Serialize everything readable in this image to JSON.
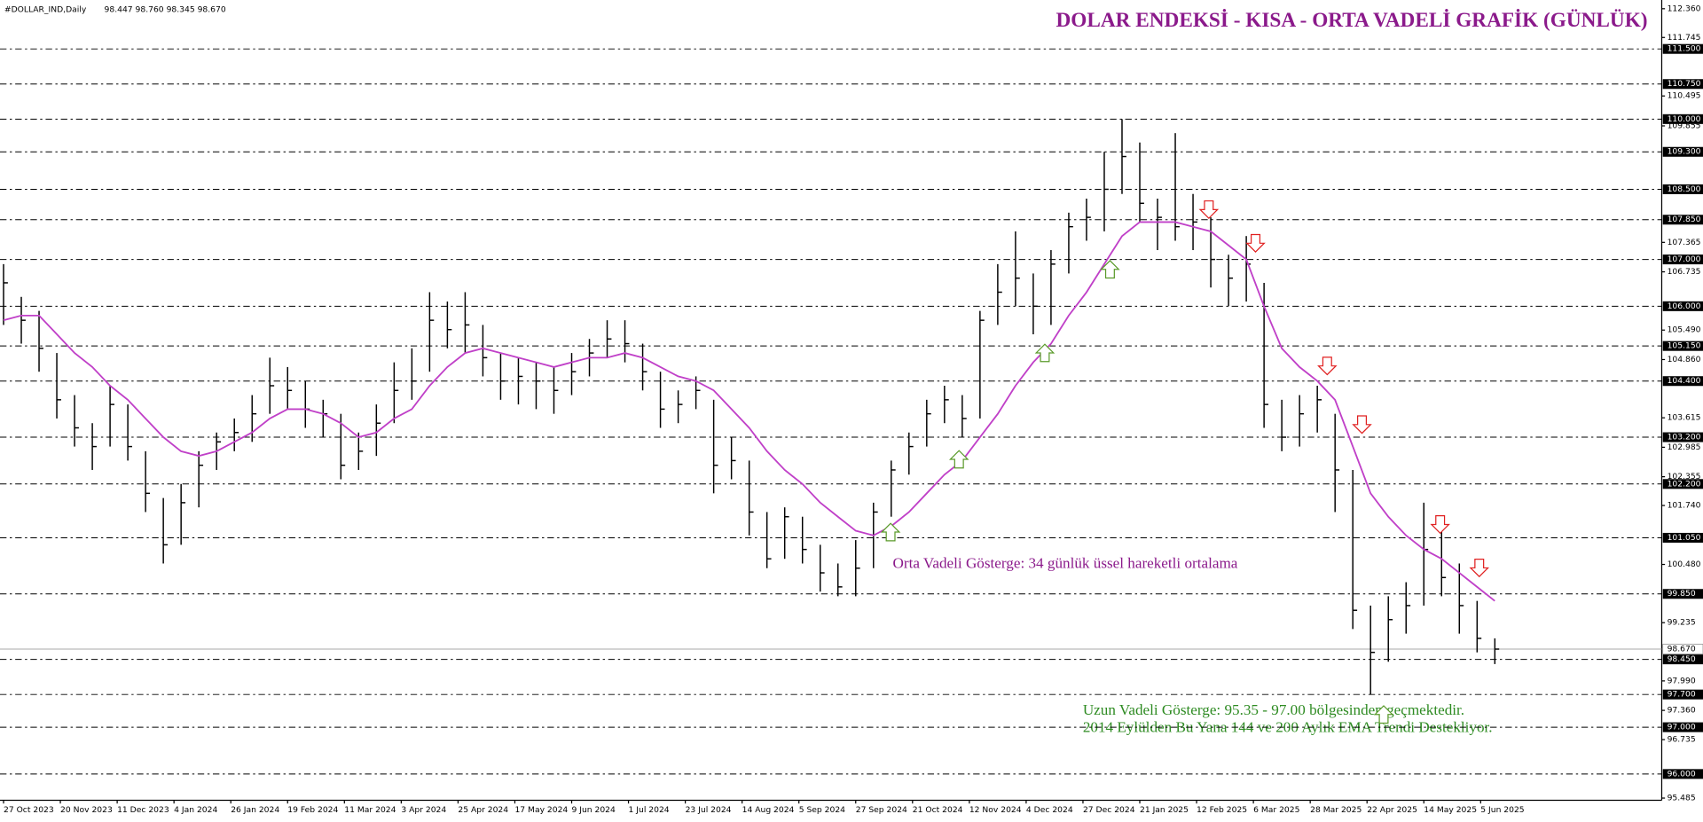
{
  "chart_data": {
    "type": "ohlc",
    "title": "DOLAR ENDEKSİ - KISA - ORTA VADELİ GRAFİK (GÜNLÜK)",
    "symbol": "#DOLLAR_IND,Daily",
    "ohlc_header": "98.447 98.760 98.345 98.670",
    "annotations": [
      "Orta Vadeli Gösterge: 34 günlük üssel hareketli ortalama",
      "Uzun Vadeli Gösterge: 95.35 - 97.00 bölgesinden geçmektedir.",
      "2014 Eylülden Bu Yana 144 ve 200 Aylık EMA Trendi Destekliyor."
    ],
    "x": [
      0,
      5,
      10,
      15,
      20,
      25,
      30,
      35,
      40,
      45,
      50,
      55,
      60,
      65,
      70,
      75,
      80,
      85,
      90,
      95,
      100,
      105,
      110,
      115,
      120,
      125,
      130,
      135,
      140,
      145,
      150,
      155,
      160,
      165,
      170,
      175,
      180,
      185,
      190,
      195,
      200,
      205,
      210,
      215,
      220,
      225,
      230,
      235,
      240,
      245,
      250,
      255,
      260,
      265,
      270,
      275,
      280,
      285,
      290,
      295,
      300,
      305,
      310,
      315,
      320,
      325,
      330,
      335,
      340,
      345,
      350,
      355,
      360,
      365,
      370,
      375,
      380,
      385,
      390,
      395,
      400,
      405,
      410,
      415,
      420
    ],
    "high": [
      106.9,
      106.2,
      105.9,
      105.0,
      104.1,
      103.5,
      104.3,
      103.9,
      102.9,
      101.9,
      102.2,
      102.9,
      103.3,
      103.6,
      104.1,
      104.9,
      104.7,
      104.4,
      104.0,
      103.7,
      103.3,
      103.9,
      104.8,
      105.1,
      106.3,
      106.1,
      106.3,
      105.6,
      105.0,
      104.9,
      104.8,
      104.7,
      105.0,
      105.3,
      105.7,
      105.7,
      105.2,
      104.6,
      104.2,
      104.5,
      104.0,
      103.2,
      102.7,
      101.6,
      101.7,
      101.5,
      100.9,
      100.5,
      101.0,
      101.8,
      102.7,
      103.3,
      104.0,
      104.3,
      104.1,
      105.9,
      106.9,
      107.6,
      106.7,
      107.2,
      108.0,
      108.3,
      109.3,
      110.0,
      109.5,
      108.3,
      109.7,
      108.4,
      107.9,
      107.1,
      107.5,
      106.5,
      104.0,
      104.1,
      104.3,
      103.7,
      102.5,
      99.6,
      99.8,
      100.1,
      101.8,
      101.2,
      100.5,
      99.7,
      98.9
    ],
    "low": [
      105.6,
      105.2,
      104.6,
      103.6,
      103.0,
      102.5,
      103.0,
      102.7,
      101.6,
      100.5,
      100.9,
      101.7,
      102.5,
      102.9,
      103.1,
      103.7,
      103.8,
      103.4,
      103.2,
      102.3,
      102.5,
      102.8,
      103.5,
      104.0,
      104.6,
      105.1,
      105.0,
      104.5,
      104.0,
      103.9,
      103.8,
      103.7,
      104.1,
      104.5,
      104.9,
      104.8,
      104.2,
      103.4,
      103.5,
      103.8,
      102.0,
      102.3,
      101.1,
      100.4,
      100.6,
      100.5,
      99.9,
      99.8,
      99.8,
      100.4,
      101.5,
      102.4,
      103.0,
      103.5,
      103.2,
      103.6,
      105.6,
      106.0,
      105.4,
      105.6,
      106.7,
      107.4,
      107.6,
      108.4,
      107.8,
      107.2,
      107.4,
      107.2,
      106.4,
      106.0,
      106.1,
      103.4,
      102.9,
      103.0,
      103.3,
      101.6,
      99.1,
      97.7,
      98.4,
      99.0,
      99.6,
      99.8,
      99.0,
      98.6,
      98.35
    ],
    "close": [
      106.5,
      105.7,
      105.1,
      104.0,
      103.4,
      103.0,
      103.9,
      103.0,
      102.0,
      100.9,
      101.8,
      102.6,
      103.1,
      103.3,
      103.7,
      104.3,
      104.2,
      103.8,
      103.7,
      102.6,
      102.9,
      103.5,
      104.2,
      104.4,
      105.7,
      105.5,
      105.6,
      104.9,
      104.4,
      104.5,
      104.4,
      104.2,
      104.6,
      105.0,
      105.3,
      105.2,
      104.6,
      103.8,
      103.9,
      104.2,
      102.6,
      102.7,
      101.6,
      100.6,
      101.5,
      100.8,
      100.3,
      100.0,
      100.4,
      101.6,
      102.5,
      103.0,
      103.7,
      104.0,
      103.6,
      105.7,
      106.3,
      106.6,
      106.0,
      106.9,
      107.7,
      107.9,
      108.5,
      109.2,
      108.2,
      107.9,
      107.7,
      107.8,
      107.0,
      106.6,
      106.9,
      103.9,
      103.2,
      103.7,
      104.0,
      102.5,
      99.5,
      98.6,
      99.3,
      99.6,
      100.8,
      100.2,
      99.6,
      98.9,
      98.67
    ],
    "ema": [
      105.7,
      105.8,
      105.8,
      105.4,
      105.0,
      104.7,
      104.3,
      104.0,
      103.6,
      103.2,
      102.9,
      102.8,
      102.9,
      103.1,
      103.3,
      103.6,
      103.8,
      103.8,
      103.7,
      103.5,
      103.2,
      103.3,
      103.6,
      103.8,
      104.3,
      104.7,
      105.0,
      105.1,
      105.0,
      104.9,
      104.8,
      104.7,
      104.8,
      104.9,
      104.9,
      105.0,
      104.9,
      104.7,
      104.5,
      104.4,
      104.2,
      103.8,
      103.4,
      102.9,
      102.5,
      102.2,
      101.8,
      101.5,
      101.2,
      101.1,
      101.3,
      101.6,
      102.0,
      102.4,
      102.7,
      103.2,
      103.7,
      104.3,
      104.8,
      105.2,
      105.8,
      106.3,
      106.9,
      107.5,
      107.8,
      107.8,
      107.8,
      107.7,
      107.6,
      107.3,
      107.0,
      106.0,
      105.1,
      104.7,
      104.4,
      104.0,
      103.0,
      102.0,
      101.5,
      101.1,
      100.8,
      100.6,
      100.3,
      100.0,
      99.7
    ],
    "bar_color": "#000000",
    "ema_color": "#c040c8",
    "xlim": [
      -1,
      467
    ],
    "xticks": [
      {
        "value": 0,
        "label": "27 Oct 2023"
      },
      {
        "value": 16,
        "label": "20 Nov 2023"
      },
      {
        "value": 32,
        "label": "11 Dec 2023"
      },
      {
        "value": 48,
        "label": "4 Jan 2024"
      },
      {
        "value": 64,
        "label": "26 Jan 2024"
      },
      {
        "value": 80,
        "label": "19 Feb 2024"
      },
      {
        "value": 96,
        "label": "11 Mar 2024"
      },
      {
        "value": 112,
        "label": "3 Apr 2024"
      },
      {
        "value": 128,
        "label": "25 Apr 2024"
      },
      {
        "value": 144,
        "label": "17 May 2024"
      },
      {
        "value": 160,
        "label": "9 Jun 2024"
      },
      {
        "value": 176,
        "label": "1 Jul 2024"
      },
      {
        "value": 192,
        "label": "23 Jul 2024"
      },
      {
        "value": 208,
        "label": "14 Aug 2024"
      },
      {
        "value": 224,
        "label": "5 Sep 2024"
      },
      {
        "value": 240,
        "label": "27 Sep 2024"
      },
      {
        "value": 256,
        "label": "21 Oct 2024"
      },
      {
        "value": 272,
        "label": "12 Nov 2024"
      },
      {
        "value": 288,
        "label": "4 Dec 2024"
      },
      {
        "value": 304,
        "label": "27 Dec 2024"
      },
      {
        "value": 320,
        "label": "21 Jan 2025"
      },
      {
        "value": 336,
        "label": "12 Feb 2025"
      },
      {
        "value": 352,
        "label": "6 Mar 2025"
      },
      {
        "value": 368,
        "label": "28 Mar 2025"
      },
      {
        "value": 384,
        "label": "22 Apr 2025"
      },
      {
        "value": 400,
        "label": "14 May 2025"
      },
      {
        "value": 416,
        "label": "5 Jun 2025"
      }
    ],
    "ylim": [
      95.485,
      112.36
    ],
    "yticks": [
      {
        "value": 112.36,
        "label": "112.360"
      },
      111.745,
      110.495,
      109.855,
      107.365,
      106.735,
      {
        "value": 105.49,
        "label": "105.490"
      },
      {
        "value": 104.86,
        "label": "104.860"
      },
      103.615,
      102.985,
      102.355,
      {
        "value": 101.74,
        "label": "101.740"
      },
      {
        "value": 100.48,
        "label": "100.480"
      },
      99.235,
      {
        "value": 97.99,
        "label": "97.990"
      },
      {
        "value": 97.36,
        "label": "97.360"
      },
      96.735,
      95.485
    ],
    "levels": [
      {
        "value": 111.5,
        "label": "111.500"
      },
      {
        "value": 110.75,
        "label": "110.750"
      },
      {
        "value": 110,
        "label": "110.000"
      },
      {
        "value": 109.3,
        "label": "109.300"
      },
      {
        "value": 108.5,
        "label": "108.500"
      },
      {
        "value": 107.85,
        "label": "107.850"
      },
      {
        "value": 107,
        "label": "107.000"
      },
      {
        "value": 106,
        "label": "106.000"
      },
      {
        "value": 105.15,
        "label": "105.150"
      },
      {
        "value": 104.4,
        "label": "104.400"
      },
      {
        "value": 103.2,
        "label": "103.200"
      },
      {
        "value": 102.2,
        "label": "102.200"
      },
      {
        "value": 101.05,
        "label": "101.050"
      },
      {
        "value": 99.85,
        "label": "99.850"
      },
      {
        "value": 98.45,
        "label": "98.450"
      },
      {
        "value": 97.7,
        "label": "97.700"
      },
      {
        "value": 97,
        "label": "97.000"
      },
      {
        "value": 96,
        "label": "96.000"
      }
    ],
    "current_price": {
      "value": 98.67,
      "label": "98.670"
    }
  }
}
